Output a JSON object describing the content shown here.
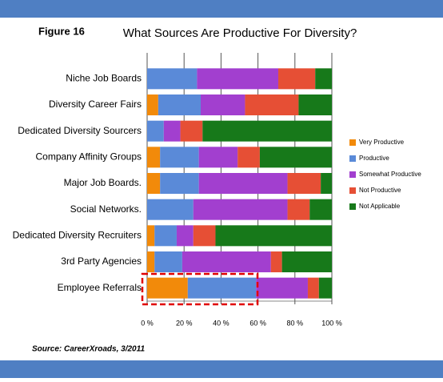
{
  "chart_data": {
    "type": "stacked-bar-horizontal",
    "figure_label": "Figure 16",
    "title": "What Sources Are Productive For Diversity?",
    "source": "Source: CareerXroads, 3/2011",
    "categories": [
      "Niche Job Boards",
      "Diversity Career Fairs",
      "Dedicated Diversity Sourcers",
      "Company Affinity Groups",
      "Major Job Boards.",
      "Social Networks.",
      "Dedicated Diversity Recruiters",
      "3rd Party Agencies",
      "Employee Referrals"
    ],
    "series": [
      {
        "name": "Very Productive",
        "color": "#f28a0a",
        "values": [
          0,
          6,
          0,
          7,
          7,
          0,
          4,
          4,
          22
        ]
      },
      {
        "name": "Productive",
        "color": "#5a8ad8",
        "values": [
          27,
          23,
          9,
          21,
          21,
          25,
          12,
          15,
          37
        ]
      },
      {
        "name": "Somewhat Productive",
        "color": "#a23fcf",
        "values": [
          44,
          24,
          9,
          21,
          48,
          51,
          9,
          48,
          28
        ]
      },
      {
        "name": "Not Productive",
        "color": "#e64f35",
        "values": [
          20,
          29,
          12,
          12,
          18,
          12,
          12,
          6,
          6
        ]
      },
      {
        "name": "Not Applicable",
        "color": "#17791a",
        "values": [
          9,
          18,
          70,
          39,
          6,
          12,
          63,
          27,
          7
        ]
      }
    ],
    "xlim": [
      0,
      100
    ],
    "xticks": [
      {
        "value": 0,
        "label": "0 %"
      },
      {
        "value": 20,
        "label": "20 %"
      },
      {
        "value": 40,
        "label": "40 %"
      },
      {
        "value": 60,
        "label": "60 %"
      },
      {
        "value": 80,
        "label": "80 %"
      },
      {
        "value": 100,
        "label": "100 %"
      }
    ],
    "grid": true,
    "legend": "right"
  }
}
